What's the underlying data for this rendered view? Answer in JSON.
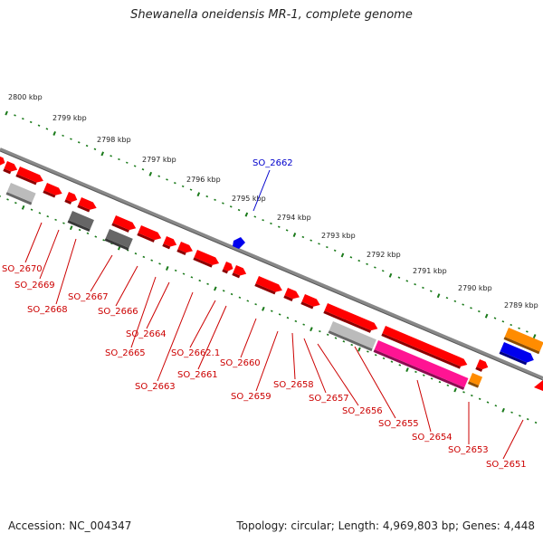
{
  "title": "Shewanella oneidensis MR-1, complete genome",
  "footer": {
    "accession": "Accession: NC_004347",
    "summary": "Topology: circular; Length: 4,969,803 bp; Genes: 4,448"
  },
  "colors": {
    "cds": "#ff0000",
    "blue": "#0000ee",
    "pink": "#ff1493",
    "orange": "#ff8c00",
    "light_gray": "#bbbbbb",
    "dark_gray": "#666666",
    "backbone": "#888888",
    "ticks": "#1a7a1a",
    "label_red": "#cc0000",
    "label_blue": "#0000cc"
  },
  "kbp_labels": [
    "2800 kbp",
    "2799 kbp",
    "2798 kbp",
    "2797 kbp",
    "2796 kbp",
    "2795 kbp",
    "2794 kbp",
    "2793 kbp",
    "2792 kbp",
    "2791 kbp",
    "2790 kbp",
    "2789 kbp"
  ],
  "gene_labels": {
    "top": [
      "SO_2662"
    ],
    "bottom": [
      "SO_2670",
      "SO_2669",
      "SO_2668",
      "SO_2667",
      "SO_2666",
      "SO_2665",
      "SO_2664",
      "SO_2663",
      "SO_2662.1",
      "SO_2661",
      "SO_2660",
      "SO_2659",
      "SO_2658",
      "SO_2657",
      "SO_2656",
      "SO_2655",
      "SO_2654",
      "SO_2653",
      "SO_2651"
    ]
  }
}
